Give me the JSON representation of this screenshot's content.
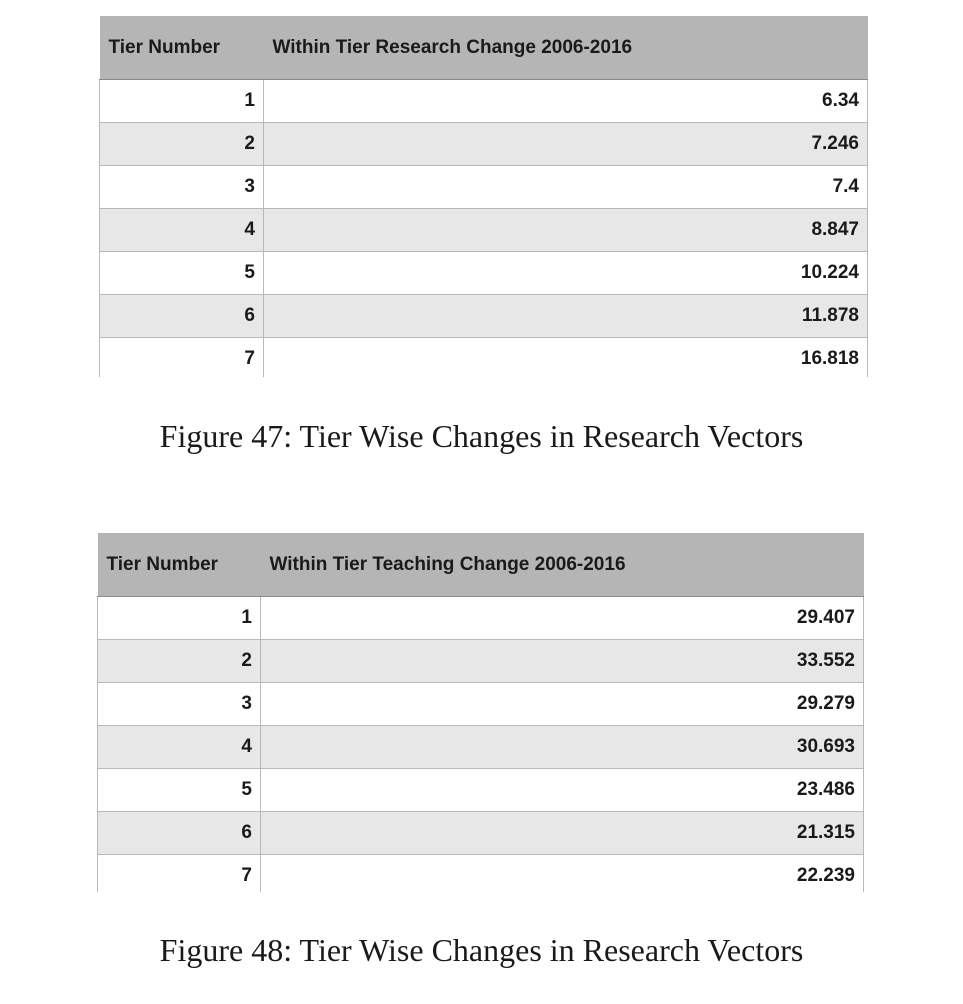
{
  "table1": {
    "headers": [
      "Tier Number",
      "Within Tier Research Change 2006-2016"
    ],
    "rows": [
      {
        "tier": "1",
        "value": "6.34"
      },
      {
        "tier": "2",
        "value": "7.246"
      },
      {
        "tier": "3",
        "value": "7.4"
      },
      {
        "tier": "4",
        "value": "8.847"
      },
      {
        "tier": "5",
        "value": "10.224"
      },
      {
        "tier": "6",
        "value": "11.878"
      },
      {
        "tier": "7",
        "value": "16.818"
      }
    ],
    "caption": "Figure 47: Tier Wise Changes in Research Vectors"
  },
  "table2": {
    "headers": [
      "Tier Number",
      "Within Tier Teaching Change 2006-2016"
    ],
    "rows": [
      {
        "tier": "1",
        "value": "29.407"
      },
      {
        "tier": "2",
        "value": "33.552"
      },
      {
        "tier": "3",
        "value": "29.279"
      },
      {
        "tier": "4",
        "value": "30.693"
      },
      {
        "tier": "5",
        "value": "23.486"
      },
      {
        "tier": "6",
        "value": "21.315"
      },
      {
        "tier": "7",
        "value": "22.239"
      }
    ],
    "caption": "Figure 48: Tier Wise Changes in Research Vectors"
  }
}
